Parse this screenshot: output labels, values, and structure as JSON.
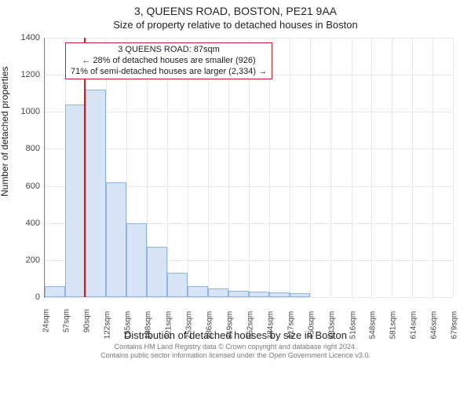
{
  "title_main": "3, QUEENS ROAD, BOSTON, PE21 9AA",
  "title_sub": "Size of property relative to detached houses in Boston",
  "ylabel": "Number of detached properties",
  "xlabel": "Distribution of detached houses by size in Boston",
  "footer_line1": "Contains HM Land Registry data © Crown copyright and database right 2024.",
  "footer_line2": "Contains public sector information licensed under the Open Government Licence v3.0.",
  "chart": {
    "type": "histogram",
    "background_color": "#ffffff",
    "grid_color": "#e8e8e8",
    "axis_color": "#888888",
    "bar_fill": "#d6e4f5",
    "bar_stroke": "#8fb3dd",
    "marker_color": "#cc1f1f",
    "ylim": [
      0,
      1400
    ],
    "yticks": [
      0,
      200,
      400,
      600,
      800,
      1000,
      1200,
      1400
    ],
    "xticks": [
      "24sqm",
      "57sqm",
      "90sqm",
      "122sqm",
      "155sqm",
      "188sqm",
      "221sqm",
      "253sqm",
      "286sqm",
      "319sqm",
      "352sqm",
      "384sqm",
      "417sqm",
      "450sqm",
      "483sqm",
      "516sqm",
      "548sqm",
      "581sqm",
      "614sqm",
      "646sqm",
      "679sqm"
    ],
    "x_numeric": [
      24,
      57,
      90,
      122,
      155,
      188,
      221,
      253,
      286,
      319,
      352,
      384,
      417,
      450,
      483,
      516,
      548,
      581,
      614,
      646,
      679
    ],
    "values": [
      60,
      1040,
      1120,
      620,
      400,
      270,
      130,
      60,
      45,
      35,
      30,
      25,
      20,
      0,
      0,
      0,
      0,
      0,
      0,
      0,
      0
    ],
    "marker_x": 87,
    "annotation": {
      "lines": [
        "3 QUEENS ROAD: 87sqm",
        "← 28% of detached houses are smaller (926)",
        "71% of semi-detached houses are larger (2,334) →"
      ],
      "border_color": "#cc1f1f",
      "fontsize": 11
    }
  }
}
